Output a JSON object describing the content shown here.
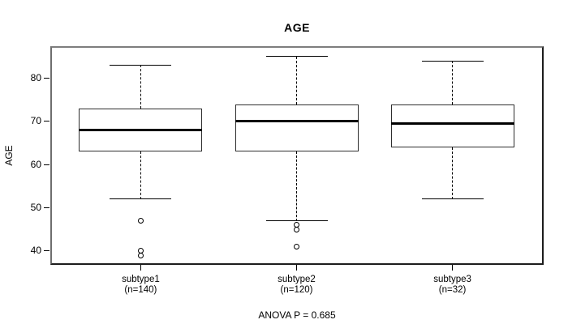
{
  "chart_data": {
    "type": "boxplot",
    "title": "AGE",
    "xlabel": "",
    "ylabel": "AGE",
    "footnote": "ANOVA P = 0.685",
    "yticks": [
      40,
      50,
      60,
      70,
      80
    ],
    "ylim": [
      37,
      87.4
    ],
    "grid": false,
    "legend": "none",
    "groups": [
      {
        "label": "subtype1",
        "sublabel": "(n=140)",
        "n": 140,
        "whisker_low": 52,
        "q1": 63,
        "median": 68,
        "q3": 73,
        "whisker_high": 83,
        "outliers": [
          47,
          40,
          39
        ]
      },
      {
        "label": "subtype2",
        "sublabel": "(n=120)",
        "n": 120,
        "whisker_low": 47,
        "q1": 63,
        "median": 70,
        "q3": 74,
        "whisker_high": 85,
        "outliers": [
          46,
          45,
          41
        ]
      },
      {
        "label": "subtype3",
        "sublabel": "(n=32)",
        "n": 32,
        "whisker_low": 52,
        "q1": 64,
        "median": 69.5,
        "q3": 74,
        "whisker_high": 84,
        "outliers": []
      }
    ],
    "colors": {
      "line": "#000000",
      "box_fill": "#ffffff",
      "background": "#ffffff"
    }
  }
}
